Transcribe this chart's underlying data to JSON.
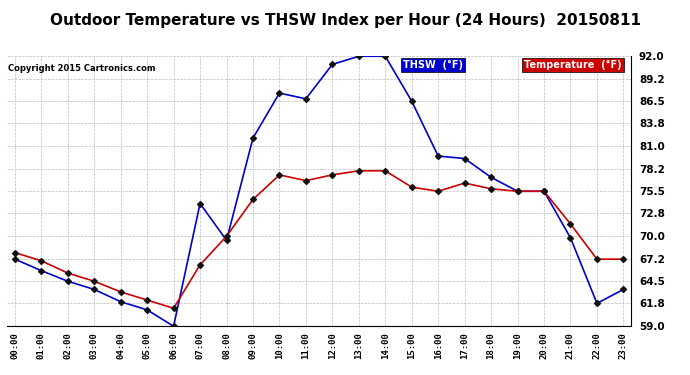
{
  "title": "Outdoor Temperature vs THSW Index per Hour (24 Hours)  20150811",
  "copyright": "Copyright 2015 Cartronics.com",
  "ylim": [
    59.0,
    92.0
  ],
  "yticks": [
    59.0,
    61.8,
    64.5,
    67.2,
    70.0,
    72.8,
    75.5,
    78.2,
    81.0,
    83.8,
    86.5,
    89.2,
    92.0
  ],
  "hours": [
    0,
    1,
    2,
    3,
    4,
    5,
    6,
    7,
    8,
    9,
    10,
    11,
    12,
    13,
    14,
    15,
    16,
    17,
    18,
    19,
    20,
    21,
    22,
    23
  ],
  "thsw": [
    67.2,
    65.8,
    64.5,
    63.5,
    62.0,
    61.0,
    59.0,
    74.0,
    69.5,
    82.0,
    87.5,
    86.8,
    91.0,
    92.0,
    92.0,
    86.5,
    79.8,
    79.5,
    77.2,
    75.5,
    75.5,
    69.8,
    61.8,
    63.5
  ],
  "temperature": [
    68.0,
    67.0,
    65.5,
    64.5,
    63.2,
    62.2,
    61.2,
    66.5,
    70.0,
    74.5,
    77.5,
    76.8,
    77.5,
    78.0,
    78.0,
    76.0,
    75.5,
    76.5,
    75.8,
    75.5,
    75.5,
    71.5,
    67.2,
    67.2
  ],
  "thsw_color": "#0000CC",
  "temp_color": "#CC0000",
  "background_color": "#FFFFFF",
  "grid_color": "#BBBBBB",
  "title_fontsize": 11,
  "legend_thsw_label": "THSW  (°F)",
  "legend_temp_label": "Temperature  (°F)",
  "marker": "D",
  "marker_size": 3,
  "marker_color": "#111111"
}
